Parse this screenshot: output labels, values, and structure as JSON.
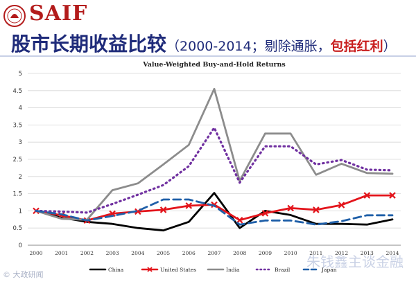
{
  "header": {
    "brand": "SAIF",
    "title_main": "股市长期收益比较",
    "title_sub_open": "（2000-2014；剔除通胀，",
    "title_sub_red": "包括红利",
    "title_sub_close": "）"
  },
  "watermarks": {
    "wechat": "朱钱鑫主谈金融",
    "corner": "© 大政研闻"
  },
  "colors": {
    "brand": "#b31b1b",
    "title": "#1f2b7a",
    "title_red": "#c81e1e",
    "china": "#000000",
    "united_states": "#e3141b",
    "india": "#8c8c8c",
    "brazil": "#7030a0",
    "japan": "#1f5fa8"
  },
  "chart_data": {
    "type": "line",
    "title": "Value-Weighted Buy-and-Hold Returns",
    "xlabel": "",
    "ylabel": "",
    "ylim": [
      0,
      5
    ],
    "yticks": [
      "0",
      "0.5",
      "1",
      "1.5",
      "2",
      "2.5",
      "3",
      "3.5",
      "4",
      "4.5",
      "5"
    ],
    "categories": [
      "2000",
      "2001",
      "2002",
      "2003",
      "2004",
      "2005",
      "2006",
      "2007",
      "2008",
      "2009",
      "2010",
      "2011",
      "2012",
      "2013",
      "2014"
    ],
    "grid": true,
    "legend_position": "bottom",
    "series": [
      {
        "name": "China",
        "style": "solid",
        "values": [
          1.0,
          0.8,
          0.68,
          0.62,
          0.5,
          0.43,
          0.68,
          1.52,
          0.5,
          1.0,
          0.88,
          0.62,
          0.62,
          0.6,
          0.75
        ]
      },
      {
        "name": "United States",
        "style": "cross",
        "values": [
          1.0,
          0.87,
          0.72,
          0.92,
          0.98,
          1.03,
          1.15,
          1.18,
          0.73,
          0.93,
          1.08,
          1.03,
          1.17,
          1.45,
          1.45
        ]
      },
      {
        "name": "India",
        "style": "solid",
        "values": [
          1.0,
          0.77,
          0.74,
          1.6,
          1.8,
          2.35,
          2.92,
          4.55,
          1.87,
          3.25,
          3.25,
          2.05,
          2.37,
          2.1,
          2.08
        ]
      },
      {
        "name": "Brazil",
        "style": "dotted",
        "values": [
          1.0,
          0.98,
          0.95,
          1.2,
          1.47,
          1.75,
          2.3,
          3.42,
          1.82,
          2.88,
          2.88,
          2.35,
          2.48,
          2.2,
          2.18
        ]
      },
      {
        "name": "Japan",
        "style": "dashed",
        "values": [
          1.0,
          0.9,
          0.72,
          0.85,
          1.0,
          1.33,
          1.33,
          1.15,
          0.6,
          0.72,
          0.72,
          0.6,
          0.7,
          0.87,
          0.87
        ]
      }
    ]
  }
}
